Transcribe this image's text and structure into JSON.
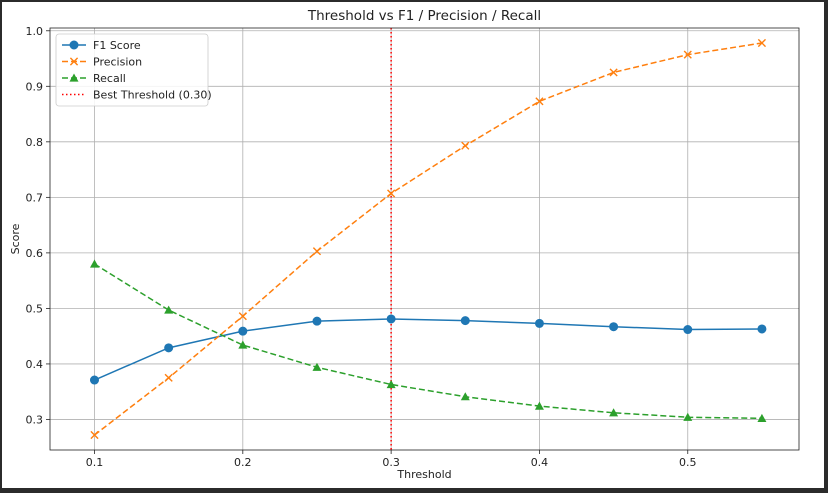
{
  "chart_data": {
    "type": "line",
    "title": "Threshold vs F1 / Precision / Recall",
    "xlabel": "Threshold",
    "ylabel": "Score",
    "x": [
      0.1,
      0.15,
      0.2,
      0.25,
      0.3,
      0.35,
      0.4,
      0.45,
      0.5,
      0.55
    ],
    "xlim": [
      0.07,
      0.575
    ],
    "ylim": [
      0.245,
      1.005
    ],
    "xticks": [
      0.1,
      0.2,
      0.3,
      0.4,
      0.5
    ],
    "xtick_labels": [
      "0.1",
      "0.2",
      "0.3",
      "0.4",
      "0.5"
    ],
    "yticks": [
      0.3,
      0.4,
      0.5,
      0.6,
      0.7,
      0.8,
      0.9,
      1.0
    ],
    "ytick_labels": [
      "0.3",
      "0.4",
      "0.5",
      "0.6",
      "0.7",
      "0.8",
      "0.9",
      "1.0"
    ],
    "grid": true,
    "legend_position": "top-left",
    "series": [
      {
        "name": "F1 Score",
        "color": "#1f77b4",
        "line_style": "solid",
        "marker": "circle",
        "values": [
          0.371,
          0.429,
          0.459,
          0.477,
          0.481,
          0.478,
          0.473,
          0.467,
          0.462,
          0.463
        ]
      },
      {
        "name": "Precision",
        "color": "#ff7f0e",
        "line_style": "dashed",
        "marker": "x",
        "values": [
          0.272,
          0.375,
          0.486,
          0.603,
          0.707,
          0.793,
          0.873,
          0.925,
          0.957,
          0.978
        ]
      },
      {
        "name": "Recall",
        "color": "#2ca02c",
        "line_style": "dashed",
        "marker": "triangle",
        "values": [
          0.58,
          0.497,
          0.434,
          0.394,
          0.363,
          0.341,
          0.324,
          0.312,
          0.304,
          0.302
        ]
      }
    ],
    "vline": {
      "name": "Best Threshold (0.30)",
      "x": 0.3,
      "color": "#ff0000",
      "line_style": "dotted"
    }
  }
}
